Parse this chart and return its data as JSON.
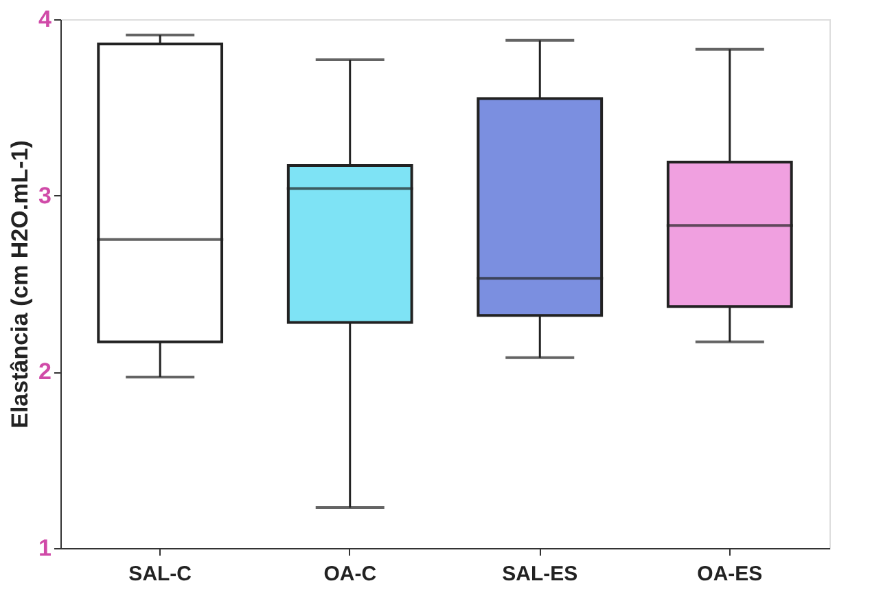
{
  "chart_data": {
    "type": "box",
    "ylabel": "Elastância (cm H2O.mL-1)",
    "categories": [
      "SAL-C",
      "OA-C",
      "SAL-ES",
      "OA-ES"
    ],
    "colors": [
      "#ffffff",
      "#7ee3f5",
      "#7b8fe0",
      "#f0a0e0"
    ],
    "boxes": [
      {
        "low": 1.97,
        "q1": 2.17,
        "median": 2.75,
        "q3": 3.86,
        "high": 3.91
      },
      {
        "low": 1.23,
        "q1": 2.28,
        "median": 3.04,
        "q3": 3.17,
        "high": 3.77
      },
      {
        "low": 2.08,
        "q1": 2.32,
        "median": 2.53,
        "q3": 3.55,
        "high": 3.88
      },
      {
        "low": 2.17,
        "q1": 2.37,
        "median": 2.83,
        "q3": 3.19,
        "high": 3.83
      }
    ],
    "ylim": [
      1,
      4
    ],
    "yticks": [
      1,
      2,
      3,
      4
    ],
    "grid": false
  }
}
